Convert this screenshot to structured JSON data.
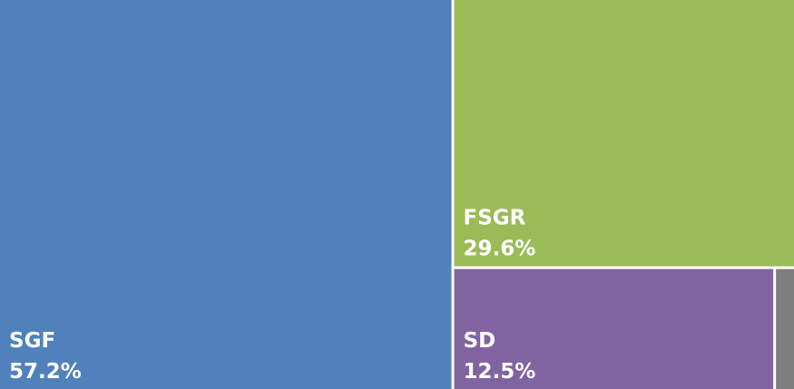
{
  "chart_data": {
    "type": "treemap",
    "categories": [
      "SGF",
      "FSGR",
      "SD",
      null
    ],
    "values": [
      57.2,
      29.6,
      12.5,
      0.7
    ],
    "value_labels": [
      "57.2%",
      "29.6%",
      "12.5%",
      null
    ],
    "colors": [
      "#4f81bd",
      "#9bbb59",
      "#8064a2",
      "#7f7f7f"
    ]
  }
}
